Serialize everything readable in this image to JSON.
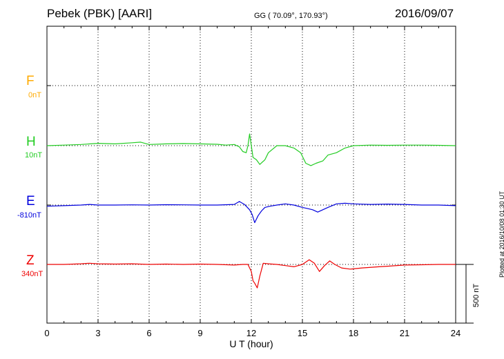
{
  "header": {
    "title": "Pebek (PBK)  [AARI]",
    "coords": "GG ( 70.09°, 170.93°)",
    "date": "2016/09/07"
  },
  "side_note": "Plotted at 2016/10/08 01:30 UT",
  "channels": [
    {
      "key": "F",
      "label": "F",
      "offset": "0nT",
      "color": "#ffaa00"
    },
    {
      "key": "H",
      "label": "H",
      "offset": "10nT",
      "color": "#22cc22"
    },
    {
      "key": "E",
      "label": "E",
      "offset": "-810nT",
      "color": "#0000dd"
    },
    {
      "key": "Z",
      "label": "Z",
      "offset": "340nT",
      "color": "#ee0000"
    }
  ],
  "chart_data": {
    "type": "line",
    "title": "Pebek (PBK)  [AARI]",
    "xlabel": "U T (hour)",
    "ylabel": "",
    "xlim": [
      0,
      24
    ],
    "x_ticks": [
      0,
      3,
      6,
      9,
      12,
      15,
      18,
      21,
      24
    ],
    "grid": true,
    "scale_bar_label": "500 nT",
    "series": [
      {
        "name": "H",
        "color": "#22cc22",
        "x": [
          0,
          1,
          2,
          3,
          4,
          5,
          5.5,
          6,
          7,
          8,
          9,
          10,
          10.5,
          11,
          11.3,
          11.5,
          11.7,
          11.8,
          11.9,
          12.0,
          12.1,
          12.3,
          12.5,
          12.8,
          13.0,
          13.5,
          14.0,
          14.5,
          14.9,
          15.2,
          15.5,
          15.8,
          16.2,
          16.5,
          17.0,
          17.5,
          18.0,
          19.0,
          20.0,
          21.0,
          22.0,
          23.0,
          24.0
        ],
        "y": [
          0,
          5,
          10,
          20,
          15,
          25,
          30,
          10,
          15,
          18,
          15,
          12,
          5,
          10,
          -10,
          -50,
          -60,
          0,
          100,
          0,
          -100,
          -120,
          -160,
          -120,
          -60,
          0,
          0,
          -20,
          -60,
          -150,
          -170,
          -150,
          -130,
          -80,
          -60,
          -20,
          0,
          5,
          3,
          5,
          5,
          3,
          0
        ]
      },
      {
        "name": "E",
        "color": "#0000dd",
        "x": [
          0,
          1,
          2,
          2.5,
          3,
          4,
          5,
          6,
          7,
          8,
          9,
          10,
          11.0,
          11.3,
          11.6,
          11.9,
          12.05,
          12.2,
          12.4,
          12.6,
          12.8,
          13.1,
          13.5,
          14.0,
          14.5,
          15.0,
          15.3,
          15.6,
          15.9,
          16.2,
          16.5,
          17.0,
          17.5,
          18.0,
          19.0,
          20.0,
          21.0,
          22.0,
          23.0,
          24.0
        ],
        "y": [
          -10,
          -5,
          0,
          5,
          0,
          0,
          2,
          0,
          3,
          2,
          0,
          0,
          5,
          30,
          5,
          -40,
          -80,
          -150,
          -90,
          -50,
          -20,
          -10,
          0,
          10,
          0,
          -20,
          -30,
          -40,
          -60,
          -40,
          -20,
          10,
          15,
          10,
          5,
          8,
          5,
          0,
          0,
          -5
        ]
      },
      {
        "name": "Z",
        "color": "#ee0000",
        "x": [
          0,
          1,
          2,
          2.5,
          3,
          4,
          5,
          6,
          7,
          8,
          9,
          10,
          11.0,
          11.5,
          11.8,
          12.0,
          12.1,
          12.2,
          12.35,
          12.5,
          12.7,
          13.0,
          13.5,
          14.0,
          14.5,
          15.0,
          15.4,
          15.7,
          16.0,
          16.3,
          16.6,
          16.9,
          17.3,
          17.8,
          18.5,
          19.5,
          20.0,
          21.0,
          22.0,
          23.0,
          24.0
        ],
        "y": [
          0,
          0,
          5,
          10,
          5,
          3,
          5,
          0,
          3,
          0,
          3,
          0,
          -5,
          0,
          0,
          -60,
          -140,
          -160,
          -200,
          -100,
          10,
          5,
          0,
          -10,
          -20,
          0,
          40,
          10,
          -60,
          -10,
          30,
          0,
          -30,
          -40,
          -30,
          -20,
          -15,
          -5,
          -3,
          0,
          0
        ]
      }
    ]
  },
  "axis": {
    "xlabel": "U T (hour)",
    "scale_bar_label": "500 nT"
  }
}
